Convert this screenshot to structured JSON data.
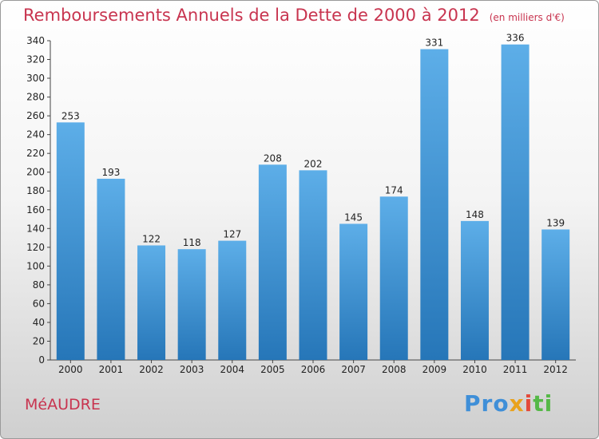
{
  "header": {
    "title": "Remboursements Annuels de la Dette de 2000 à 2012",
    "unit": "(en milliers d'€)"
  },
  "commune": "MéAUDRE",
  "logo": {
    "p1": "Pro",
    "p2": "x",
    "p3": "i",
    "p4": "ti"
  },
  "colors": {
    "bar_top": "#5daee8",
    "bar_bottom": "#2676b8",
    "title": "#c8344f"
  },
  "chart_data": {
    "type": "bar",
    "title": "Remboursements Annuels de la Dette de 2000 à 2012",
    "subtitle": "(en milliers d'€)",
    "categories": [
      "2000",
      "2001",
      "2002",
      "2003",
      "2004",
      "2005",
      "2006",
      "2007",
      "2008",
      "2009",
      "2010",
      "2011",
      "2012"
    ],
    "values": [
      253,
      193,
      122,
      118,
      127,
      208,
      202,
      145,
      174,
      331,
      148,
      336,
      139
    ],
    "ylim": [
      0,
      340
    ],
    "yticks": [
      0,
      20,
      40,
      60,
      80,
      100,
      120,
      140,
      160,
      180,
      200,
      220,
      240,
      260,
      280,
      300,
      320,
      340
    ],
    "grid": false,
    "legend": "none"
  }
}
